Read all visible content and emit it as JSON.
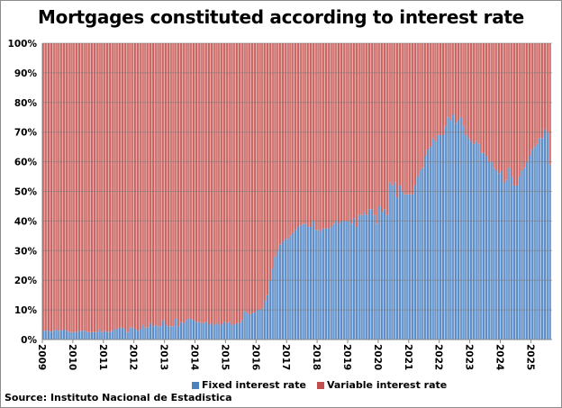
{
  "chart_data": {
    "type": "bar",
    "stacked": "percent",
    "title": "Mortgages constituted according to interest rate",
    "source": "Source: Instituto Nacional de Estadistica",
    "frequency": "monthly",
    "x_tick_labels": [
      "2009",
      "2010",
      "2011",
      "2012",
      "2013",
      "2014",
      "2015",
      "2016",
      "2017",
      "2018",
      "2019",
      "2020",
      "2021",
      "2022",
      "2023",
      "2024",
      "2025"
    ],
    "y_tick_labels": [
      "0%",
      "10%",
      "20%",
      "30%",
      "40%",
      "50%",
      "60%",
      "70%",
      "80%",
      "90%",
      "100%"
    ],
    "ylim": [
      0,
      100
    ],
    "grid": true,
    "legend": "bottom",
    "colors": {
      "fixed": "#4f81bd",
      "variable": "#c0504d"
    },
    "series": [
      {
        "name": "Fixed interest rate",
        "values": [
          3,
          3,
          3,
          2.5,
          3,
          3.5,
          3,
          3,
          3.5,
          3,
          2.5,
          2.5,
          2.5,
          2.5,
          3,
          3,
          3,
          2.5,
          2.5,
          2.5,
          2.5,
          2.5,
          3.5,
          2.5,
          3,
          2.5,
          2.5,
          3,
          3.5,
          3.5,
          4,
          4,
          3.5,
          2.5,
          4,
          4,
          3.5,
          3,
          3.5,
          5,
          4,
          4,
          5.5,
          4.5,
          5,
          4.5,
          4.5,
          6.5,
          5,
          4.5,
          4.5,
          4.5,
          7,
          4.5,
          6,
          5.5,
          6.5,
          7,
          7,
          6.5,
          6,
          6,
          5.5,
          5.5,
          6,
          5,
          5.5,
          5,
          5.5,
          5,
          5,
          6,
          5.5,
          6,
          5,
          5,
          5.5,
          5.5,
          6.5,
          9.5,
          9,
          8.5,
          9,
          9,
          10,
          10,
          10.5,
          13,
          15,
          20,
          24,
          28,
          30,
          32,
          33,
          34,
          34,
          35,
          36,
          37,
          38,
          38.5,
          39,
          39,
          38,
          38,
          40,
          37,
          37,
          36.5,
          37.5,
          37.5,
          37.5,
          38,
          39,
          40,
          39,
          40,
          40,
          40,
          40,
          39,
          41,
          38,
          42,
          42,
          43,
          42,
          44,
          44,
          42,
          39,
          45,
          43,
          44,
          42,
          53,
          52,
          53,
          48,
          52,
          50,
          49,
          49,
          49,
          49,
          52,
          55,
          57,
          58,
          62,
          64,
          65,
          68,
          67,
          69,
          69,
          69,
          72,
          75,
          74,
          76,
          73,
          74,
          75,
          72,
          69,
          68,
          67,
          66,
          67,
          66,
          63,
          63,
          62,
          60,
          60,
          58,
          57,
          56,
          57,
          53,
          54,
          58,
          55,
          52,
          52,
          55,
          57,
          58,
          60,
          62,
          64,
          65,
          66,
          68,
          68,
          71,
          70,
          59
        ]
      },
      {
        "name": "Variable interest rate",
        "values": [
          97,
          97,
          97,
          97.5,
          97,
          96.5,
          97,
          97,
          96.5,
          97,
          97.5,
          97.5,
          97.5,
          97.5,
          97,
          97,
          97,
          97.5,
          97.5,
          97.5,
          97.5,
          97.5,
          96.5,
          97.5,
          97,
          97.5,
          97.5,
          97,
          96.5,
          96.5,
          96,
          96,
          96.5,
          97.5,
          96,
          96,
          96.5,
          97,
          96.5,
          95,
          96,
          96,
          94.5,
          95.5,
          95,
          95.5,
          95.5,
          93.5,
          95,
          95.5,
          95.5,
          95.5,
          93,
          95.5,
          94,
          94.5,
          93.5,
          93,
          93,
          93.5,
          94,
          94,
          94.5,
          94.5,
          94,
          95,
          94.5,
          95,
          94.5,
          95,
          95,
          94,
          94.5,
          94,
          95,
          95,
          94.5,
          94.5,
          93.5,
          90.5,
          91,
          91.5,
          91,
          91,
          90,
          90,
          89.5,
          87,
          85,
          80,
          76,
          72,
          70,
          68,
          67,
          66,
          66,
          65,
          64,
          63,
          62,
          61.5,
          61,
          61,
          62,
          62,
          60,
          63,
          63,
          63.5,
          62.5,
          62.5,
          62.5,
          62,
          61,
          60,
          61,
          60,
          60,
          60,
          60,
          61,
          59,
          62,
          58,
          58,
          57,
          58,
          56,
          56,
          58,
          61,
          55,
          57,
          56,
          58,
          47,
          48,
          47,
          52,
          48,
          50,
          51,
          51,
          51,
          51,
          48,
          45,
          43,
          42,
          38,
          36,
          35,
          32,
          33,
          31,
          31,
          31,
          28,
          25,
          26,
          24,
          27,
          26,
          25,
          28,
          31,
          32,
          33,
          34,
          33,
          34,
          37,
          37,
          38,
          40,
          40,
          42,
          43,
          44,
          43,
          47,
          46,
          42,
          45,
          48,
          48,
          45,
          43,
          42,
          40,
          38,
          36,
          35,
          34,
          32,
          32,
          29,
          30,
          41
        ]
      }
    ]
  }
}
